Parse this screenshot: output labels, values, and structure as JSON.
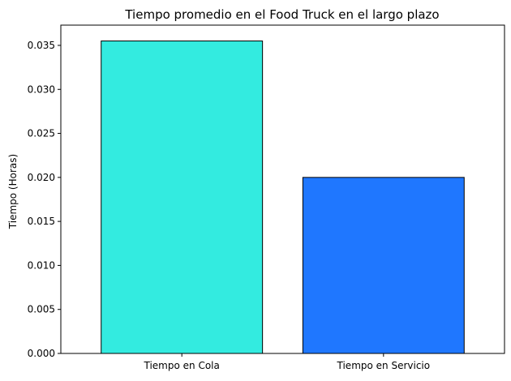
{
  "chart_data": {
    "type": "bar",
    "title": "Tiempo promedio en el Food Truck en el largo plazo",
    "xlabel": "",
    "ylabel": "Tiempo (Horas)",
    "categories": [
      "Tiempo en Cola",
      "Tiempo en Servicio"
    ],
    "values": [
      0.0355,
      0.02
    ],
    "colors": [
      "#33EBE0",
      "#1F77FF"
    ],
    "edge_color": "#000000",
    "ylim": [
      0,
      0.0373
    ],
    "yticks": [
      0.0,
      0.005,
      0.01,
      0.015,
      0.02,
      0.025,
      0.03,
      0.035
    ],
    "ytick_labels": [
      "0.000",
      "0.005",
      "0.010",
      "0.015",
      "0.020",
      "0.025",
      "0.030",
      "0.035"
    ],
    "grid": false,
    "legend": "none"
  }
}
